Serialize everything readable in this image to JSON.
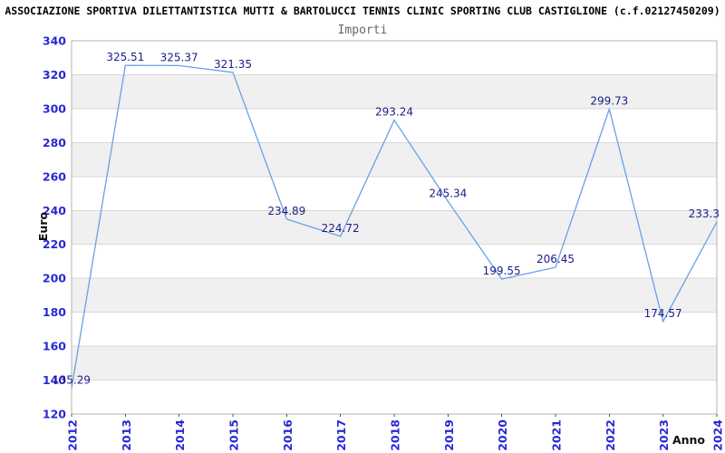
{
  "header": {
    "title": "ASSOCIAZIONE SPORTIVA DILETTANTISTICA MUTTI & BARTOLUCCI TENNIS CLINIC SPORTING CLUB CASTIGLIONE (c.f.02127450209)",
    "subtitle": "Importi"
  },
  "chart_data": {
    "type": "line",
    "title": "Importi",
    "xlabel": "Anno",
    "ylabel": "Euro",
    "categories": [
      "2012",
      "2013",
      "2014",
      "2015",
      "2016",
      "2017",
      "2018",
      "2019",
      "2020",
      "2021",
      "2022",
      "2023",
      "2024"
    ],
    "series": [
      {
        "name": "Importi",
        "values": [
          135.29,
          325.51,
          325.37,
          321.35,
          234.89,
          224.72,
          293.24,
          245.34,
          199.55,
          206.45,
          299.73,
          174.57,
          233.3
        ],
        "point_labels": [
          "135.29",
          "325.51",
          "325.37",
          "321.35",
          "234.89",
          "224.72",
          "293.24",
          "245.34",
          "199.55",
          "206.45",
          "299.73",
          "174.57",
          "233.3"
        ]
      }
    ],
    "ylim": [
      120,
      340
    ],
    "ytick_step": 20,
    "ytick_labels": [
      "340",
      "320",
      "300",
      "280",
      "260",
      "240",
      "220",
      "200",
      "180",
      "160",
      "140",
      "120"
    ],
    "grid": true,
    "legend_position": "none",
    "colors": {
      "line": "#67a2e4",
      "value_label": "#1c1c8a",
      "tick_label": "#2828d4",
      "band_gray": "#f0f0f0",
      "band_white": "#ffffff",
      "grid": "#d9d9d9",
      "plot_border": "#b3b3b3",
      "axis_label": "#111111",
      "tick_mark": "#555555"
    }
  }
}
